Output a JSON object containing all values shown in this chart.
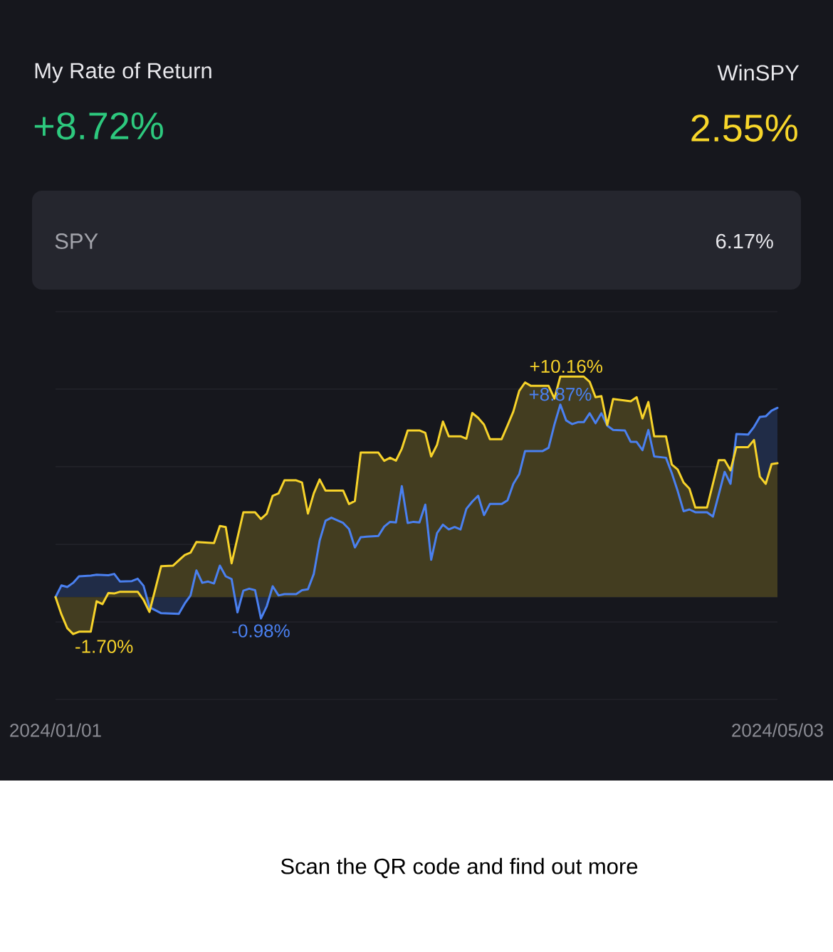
{
  "chart_data": {
    "type": "area",
    "annotations": [
      "My Rate of Return",
      "+8.72%",
      "WinSPY",
      "2.55%",
      "SPY",
      "6.17%",
      "Scan the QR code and find out more"
    ],
    "xlim": [
      "2024-01-01",
      "2024-05-03"
    ],
    "xticks": [
      {
        "value": "2024-01-01",
        "label": "2024/01/01"
      },
      {
        "value": "2024-05-03",
        "label": "2024/05/03"
      }
    ],
    "ylim": [
      -4.71,
      13.15
    ],
    "yticks": [
      {
        "value": -4.71,
        "label": null
      },
      {
        "value": -1.14,
        "label": null
      },
      {
        "value": 2.43,
        "label": null
      },
      {
        "value": 6.01,
        "label": null
      },
      {
        "value": 9.58,
        "label": null
      },
      {
        "value": 13.15,
        "label": null
      }
    ],
    "grid": "y",
    "tick_labels": "x",
    "series": [
      {
        "color": "#4a80f0",
        "x": [
          "2024-01-01",
          "2024-01-02",
          "2024-01-03",
          "2024-01-04",
          "2024-01-05",
          "2024-01-07",
          "2024-01-08",
          "2024-01-10",
          "2024-01-11",
          "2024-01-12",
          "2024-01-14",
          "2024-01-15",
          "2024-01-16",
          "2024-01-17",
          "2024-01-19",
          "2024-01-22",
          "2024-01-23",
          "2024-01-24",
          "2024-01-25",
          "2024-01-26",
          "2024-01-27",
          "2024-01-28",
          "2024-01-29",
          "2024-01-30",
          "2024-01-31",
          "2024-02-01",
          "2024-02-02",
          "2024-02-03",
          "2024-02-04",
          "2024-02-05",
          "2024-02-06",
          "2024-02-07",
          "2024-02-08",
          "2024-02-09",
          "2024-02-11",
          "2024-02-12",
          "2024-02-13",
          "2024-02-14",
          "2024-02-15",
          "2024-02-16",
          "2024-02-17",
          "2024-02-19",
          "2024-02-20",
          "2024-02-21",
          "2024-02-22",
          "2024-02-23",
          "2024-02-25",
          "2024-02-26",
          "2024-02-27",
          "2024-02-28",
          "2024-02-29",
          "2024-03-01",
          "2024-03-02",
          "2024-03-03",
          "2024-03-04",
          "2024-03-05",
          "2024-03-06",
          "2024-03-07",
          "2024-03-08",
          "2024-03-09",
          "2024-03-10",
          "2024-03-11",
          "2024-03-12",
          "2024-03-13",
          "2024-03-14",
          "2024-03-15",
          "2024-03-17",
          "2024-03-18",
          "2024-03-19",
          "2024-03-20",
          "2024-03-21",
          "2024-03-24",
          "2024-03-25",
          "2024-03-26",
          "2024-03-27",
          "2024-03-28",
          "2024-03-29",
          "2024-03-30",
          "2024-03-31",
          "2024-04-01",
          "2024-04-02",
          "2024-04-03",
          "2024-04-04",
          "2024-04-05",
          "2024-04-07",
          "2024-04-08",
          "2024-04-09",
          "2024-04-10",
          "2024-04-11",
          "2024-04-12",
          "2024-04-14",
          "2024-04-15",
          "2024-04-16",
          "2024-04-17",
          "2024-04-18",
          "2024-04-19",
          "2024-04-21",
          "2024-04-22",
          "2024-04-23",
          "2024-04-24",
          "2024-04-25",
          "2024-04-26",
          "2024-04-28",
          "2024-04-29",
          "2024-04-30",
          "2024-05-01",
          "2024-05-02",
          "2024-05-03"
        ],
        "values": [
          0.0,
          0.54,
          0.47,
          0.66,
          0.96,
          0.99,
          1.03,
          1.01,
          1.07,
          0.72,
          0.74,
          0.85,
          0.52,
          -0.46,
          -0.74,
          -0.77,
          -0.3,
          0.08,
          1.23,
          0.66,
          0.72,
          0.63,
          1.45,
          0.96,
          0.83,
          -0.7,
          0.3,
          0.39,
          0.32,
          -0.98,
          -0.41,
          0.5,
          0.08,
          0.14,
          0.14,
          0.32,
          0.36,
          1.07,
          2.6,
          3.52,
          3.66,
          3.42,
          3.14,
          2.29,
          2.76,
          2.79,
          2.82,
          3.25,
          3.47,
          3.44,
          5.11,
          3.42,
          3.47,
          3.44,
          4.26,
          1.72,
          2.95,
          3.34,
          3.12,
          3.23,
          3.12,
          4.07,
          4.4,
          4.67,
          3.78,
          4.29,
          4.29,
          4.46,
          5.22,
          5.66,
          6.73,
          6.73,
          6.88,
          7.95,
          8.87,
          8.14,
          7.97,
          8.06,
          8.06,
          8.47,
          8.01,
          8.47,
          7.9,
          7.7,
          7.68,
          7.15,
          7.15,
          6.77,
          7.7,
          6.48,
          6.42,
          5.71,
          4.89,
          3.96,
          4.04,
          3.91,
          3.91,
          3.71,
          4.73,
          5.77,
          5.22,
          7.51,
          7.49,
          7.84,
          8.3,
          8.33,
          8.59,
          8.72
        ],
        "value_labels": [
          null,
          null,
          null,
          null,
          null,
          null,
          null,
          null,
          null,
          null,
          null,
          null,
          null,
          null,
          null,
          null,
          null,
          null,
          null,
          null,
          null,
          null,
          null,
          null,
          null,
          null,
          null,
          null,
          null,
          "-0.98%",
          null,
          null,
          null,
          null,
          null,
          null,
          null,
          null,
          null,
          null,
          null,
          null,
          null,
          null,
          null,
          null,
          null,
          null,
          null,
          null,
          null,
          null,
          null,
          null,
          null,
          null,
          null,
          null,
          null,
          null,
          null,
          null,
          null,
          null,
          null,
          null,
          null,
          null,
          null,
          null,
          null,
          null,
          null,
          null,
          "+8.87%",
          null,
          null,
          null,
          null,
          null,
          null,
          null,
          null,
          null,
          null,
          null,
          null,
          null,
          null,
          null,
          null,
          null,
          null,
          null,
          null,
          null,
          null,
          null,
          null,
          null,
          null,
          null,
          null,
          null,
          null,
          null,
          null,
          null
        ]
      },
      {
        "color": "#f7d32a",
        "x": [
          "2024-01-01",
          "2024-01-02",
          "2024-01-03",
          "2024-01-04",
          "2024-01-05",
          "2024-01-07",
          "2024-01-08",
          "2024-01-09",
          "2024-01-10",
          "2024-01-11",
          "2024-01-12",
          "2024-01-15",
          "2024-01-16",
          "2024-01-17",
          "2024-01-19",
          "2024-01-21",
          "2024-01-23",
          "2024-01-24",
          "2024-01-25",
          "2024-01-28",
          "2024-01-29",
          "2024-01-30",
          "2024-01-31",
          "2024-02-02",
          "2024-02-04",
          "2024-02-05",
          "2024-02-06",
          "2024-02-07",
          "2024-02-08",
          "2024-02-09",
          "2024-02-11",
          "2024-02-12",
          "2024-02-13",
          "2024-02-14",
          "2024-02-15",
          "2024-02-16",
          "2024-02-19",
          "2024-02-20",
          "2024-02-21",
          "2024-02-22",
          "2024-02-25",
          "2024-02-26",
          "2024-02-27",
          "2024-02-28",
          "2024-02-29",
          "2024-03-01",
          "2024-03-03",
          "2024-03-04",
          "2024-03-05",
          "2024-03-06",
          "2024-03-07",
          "2024-03-08",
          "2024-03-10",
          "2024-03-11",
          "2024-03-12",
          "2024-03-13",
          "2024-03-14",
          "2024-03-15",
          "2024-03-17",
          "2024-03-18",
          "2024-03-19",
          "2024-03-20",
          "2024-03-21",
          "2024-03-22",
          "2024-03-25",
          "2024-03-26",
          "2024-03-27",
          "2024-03-28",
          "2024-03-31",
          "2024-04-01",
          "2024-04-02",
          "2024-04-03",
          "2024-04-04",
          "2024-04-05",
          "2024-04-08",
          "2024-04-09",
          "2024-04-10",
          "2024-04-11",
          "2024-04-12",
          "2024-04-14",
          "2024-04-15",
          "2024-04-16",
          "2024-04-17",
          "2024-04-18",
          "2024-04-19",
          "2024-04-21",
          "2024-04-23",
          "2024-04-24",
          "2024-04-25",
          "2024-04-26",
          "2024-04-28",
          "2024-04-29",
          "2024-04-30",
          "2024-05-01",
          "2024-05-02",
          "2024-05-03"
        ],
        "values": [
          0.0,
          -0.79,
          -1.43,
          -1.7,
          -1.59,
          -1.59,
          -0.19,
          -0.32,
          0.19,
          0.17,
          0.25,
          0.25,
          -0.13,
          -0.68,
          1.43,
          1.45,
          1.94,
          2.05,
          2.54,
          2.49,
          3.28,
          3.23,
          1.56,
          3.91,
          3.91,
          3.6,
          3.85,
          4.67,
          4.78,
          5.38,
          5.38,
          5.28,
          3.85,
          4.78,
          5.42,
          4.91,
          4.91,
          4.29,
          4.43,
          6.66,
          6.66,
          6.28,
          6.42,
          6.29,
          6.84,
          7.68,
          7.68,
          7.57,
          6.48,
          7.02,
          8.09,
          7.41,
          7.41,
          7.3,
          8.48,
          8.26,
          7.95,
          7.28,
          7.28,
          7.9,
          8.55,
          9.5,
          9.89,
          9.73,
          9.73,
          9.15,
          10.16,
          10.16,
          10.16,
          9.92,
          9.21,
          9.26,
          7.93,
          9.13,
          9.02,
          9.21,
          8.23,
          8.99,
          7.41,
          7.41,
          6.11,
          5.88,
          5.28,
          5.0,
          4.13,
          4.13,
          6.31,
          6.31,
          5.84,
          6.91,
          6.91,
          7.24,
          5.55,
          5.22,
          6.13,
          6.17
        ],
        "value_labels": [
          null,
          null,
          null,
          "-1.70%",
          null,
          null,
          null,
          null,
          null,
          null,
          null,
          null,
          null,
          null,
          null,
          null,
          null,
          null,
          null,
          null,
          null,
          null,
          null,
          null,
          null,
          null,
          null,
          null,
          null,
          null,
          null,
          null,
          null,
          null,
          null,
          null,
          null,
          null,
          null,
          null,
          null,
          null,
          null,
          null,
          null,
          null,
          null,
          null,
          null,
          null,
          null,
          null,
          null,
          null,
          null,
          null,
          null,
          null,
          null,
          null,
          null,
          null,
          null,
          null,
          null,
          null,
          null,
          "+10.16%",
          null,
          null,
          null,
          null,
          null,
          null,
          null,
          null,
          null,
          null,
          null,
          null,
          null,
          null,
          null,
          null,
          null,
          null,
          null,
          null,
          null,
          null,
          null,
          null,
          null,
          null,
          null,
          null
        ]
      }
    ]
  }
}
